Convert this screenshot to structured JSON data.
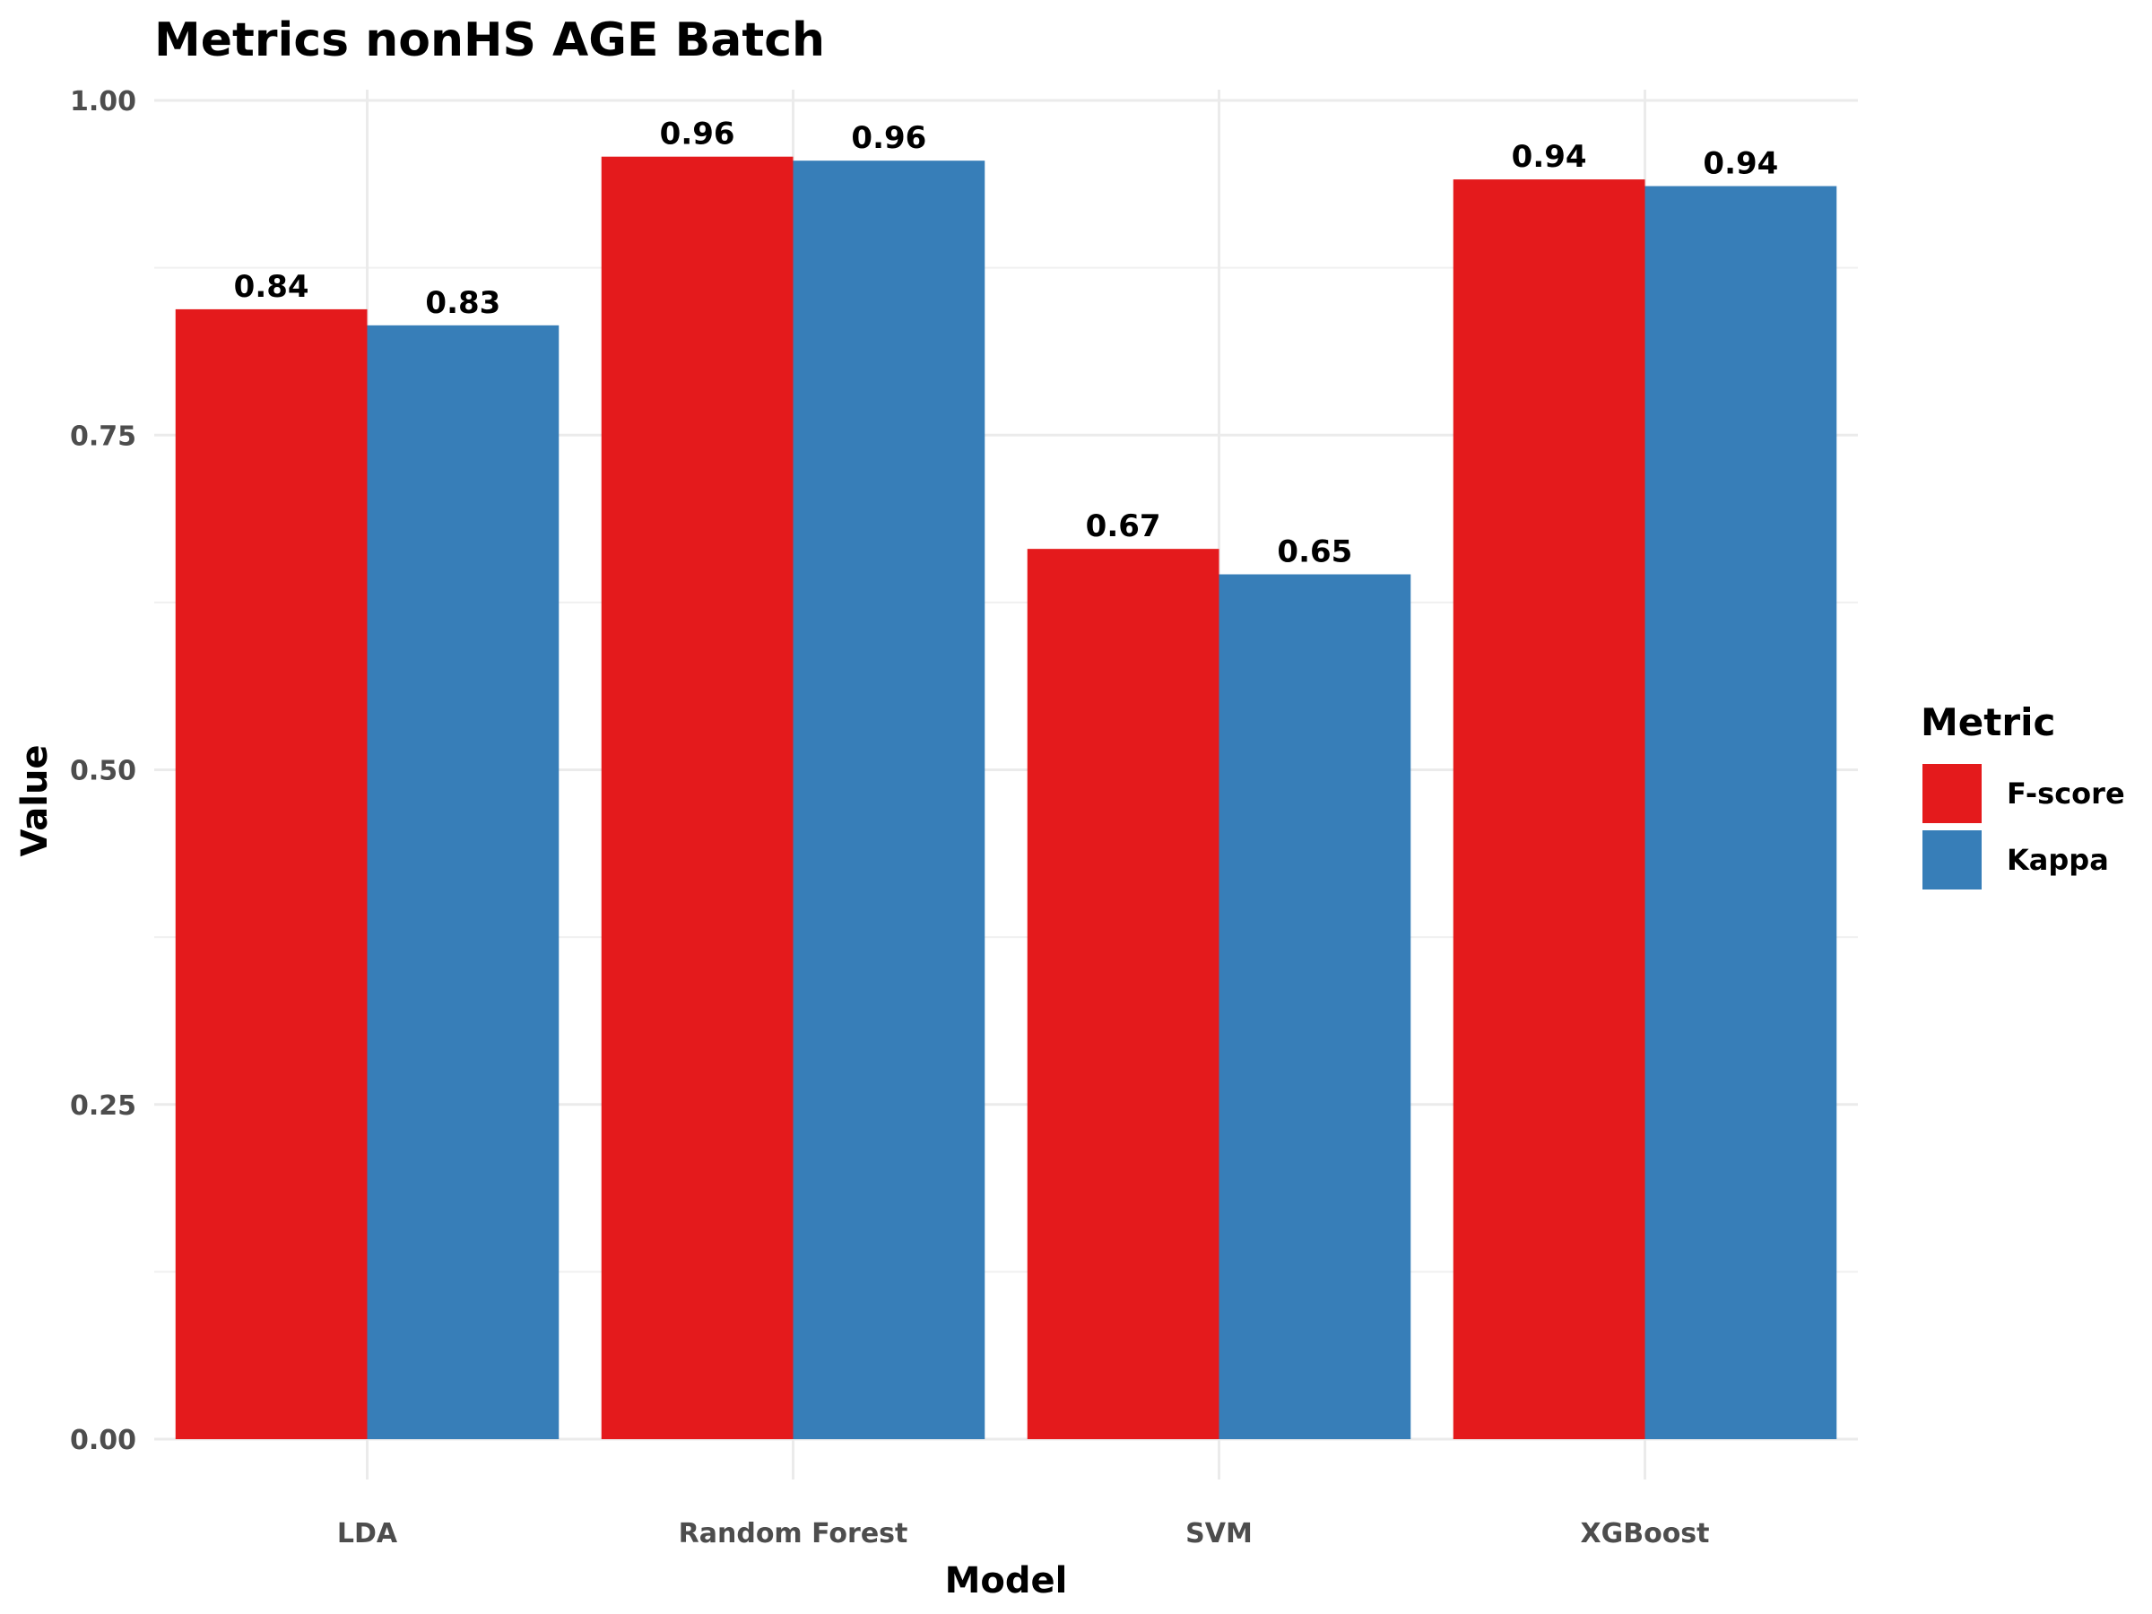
{
  "chart_data": {
    "type": "bar",
    "title": "Metrics nonHS AGE Batch",
    "xlabel": "Model",
    "ylabel": "Value",
    "categories": [
      "LDA",
      "Random Forest",
      "SVM",
      "XGBoost"
    ],
    "series": [
      {
        "name": "F-score",
        "color": "#e41a1c",
        "values": [
          0.844,
          0.958,
          0.665,
          0.941
        ],
        "labels": [
          "0.84",
          "0.96",
          "0.67",
          "0.94"
        ]
      },
      {
        "name": "Kappa",
        "color": "#377eb8",
        "values": [
          0.832,
          0.955,
          0.646,
          0.936
        ],
        "labels": [
          "0.83",
          "0.96",
          "0.65",
          "0.94"
        ]
      }
    ],
    "ylim": [
      0,
      1
    ],
    "yticks": [
      0,
      0.25,
      0.5,
      0.75,
      1
    ],
    "ytick_labels": [
      "0.00",
      "0.25",
      "0.50",
      "0.75",
      "1.00"
    ],
    "grid": true,
    "legend": {
      "title": "Metric",
      "position": "right"
    }
  }
}
